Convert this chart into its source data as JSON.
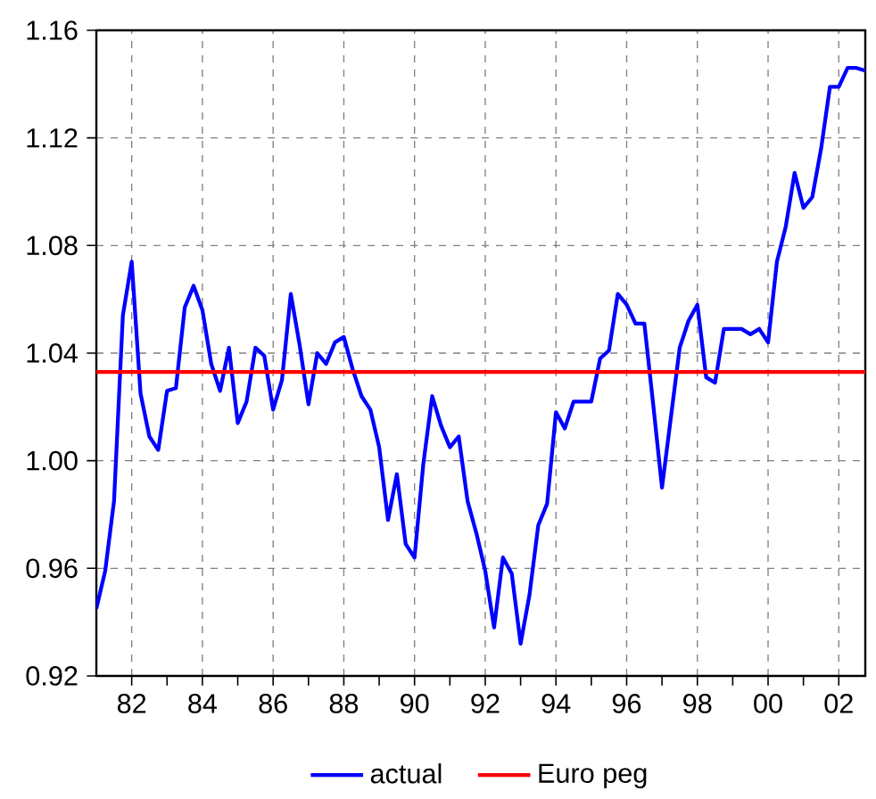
{
  "chart_data": {
    "type": "line",
    "xlim": [
      1981,
      2002.75
    ],
    "ylim": [
      0.92,
      1.16
    ],
    "xticks": [
      {
        "value": 1982,
        "label": "82"
      },
      {
        "value": 1983,
        "label": null
      },
      {
        "value": 1984,
        "label": "84"
      },
      {
        "value": 1985,
        "label": null
      },
      {
        "value": 1986,
        "label": "86"
      },
      {
        "value": 1987,
        "label": null
      },
      {
        "value": 1988,
        "label": "88"
      },
      {
        "value": 1989,
        "label": null
      },
      {
        "value": 1990,
        "label": "90"
      },
      {
        "value": 1991,
        "label": null
      },
      {
        "value": 1992,
        "label": "92"
      },
      {
        "value": 1993,
        "label": null
      },
      {
        "value": 1994,
        "label": "94"
      },
      {
        "value": 1995,
        "label": null
      },
      {
        "value": 1996,
        "label": "96"
      },
      {
        "value": 1997,
        "label": null
      },
      {
        "value": 1998,
        "label": "98"
      },
      {
        "value": 1999,
        "label": null
      },
      {
        "value": 2000,
        "label": "00"
      },
      {
        "value": 2001,
        "label": null
      },
      {
        "value": 2002,
        "label": "02"
      }
    ],
    "yticks": [
      {
        "value": 0.92,
        "label": "0.92"
      },
      {
        "value": 0.96,
        "label": "0.96"
      },
      {
        "value": 1.0,
        "label": "1.00"
      },
      {
        "value": 1.04,
        "label": "1.04"
      },
      {
        "value": 1.08,
        "label": "1.08"
      },
      {
        "value": 1.12,
        "label": "1.12"
      },
      {
        "value": 1.16,
        "label": "1.16"
      }
    ],
    "grid": true,
    "legend": "bottom",
    "marker": "none",
    "line_style": "solid",
    "series": [
      {
        "name": "actual",
        "color": "#0000ff",
        "x": [
          1981.0,
          1981.25,
          1981.5,
          1981.75,
          1982.0,
          1982.25,
          1982.5,
          1982.75,
          1983.0,
          1983.25,
          1983.5,
          1983.75,
          1984.0,
          1984.25,
          1984.5,
          1984.75,
          1985.0,
          1985.25,
          1985.5,
          1985.75,
          1986.0,
          1986.25,
          1986.5,
          1986.75,
          1987.0,
          1987.25,
          1987.5,
          1987.75,
          1988.0,
          1988.25,
          1988.5,
          1988.75,
          1989.0,
          1989.25,
          1989.5,
          1989.75,
          1990.0,
          1990.25,
          1990.5,
          1990.75,
          1991.0,
          1991.25,
          1991.5,
          1991.75,
          1992.0,
          1992.25,
          1992.5,
          1992.75,
          1993.0,
          1993.25,
          1993.5,
          1993.75,
          1994.0,
          1994.25,
          1994.5,
          1994.75,
          1995.0,
          1995.25,
          1995.5,
          1995.75,
          1996.0,
          1996.25,
          1996.5,
          1996.75,
          1997.0,
          1997.25,
          1997.5,
          1997.75,
          1998.0,
          1998.25,
          1998.5,
          1998.75,
          1999.0,
          1999.25,
          1999.5,
          1999.75,
          2000.0,
          2000.25,
          2000.5,
          2000.75,
          2001.0,
          2001.25,
          2001.5,
          2001.75,
          2002.0,
          2002.25,
          2002.5,
          2002.75
        ],
        "values": [
          0.945,
          0.959,
          0.985,
          1.054,
          1.074,
          1.025,
          1.009,
          1.004,
          1.026,
          1.027,
          1.057,
          1.065,
          1.056,
          1.036,
          1.026,
          1.042,
          1.014,
          1.022,
          1.042,
          1.039,
          1.019,
          1.03,
          1.062,
          1.043,
          1.021,
          1.04,
          1.036,
          1.044,
          1.046,
          1.034,
          1.024,
          1.019,
          1.005,
          0.978,
          0.995,
          0.969,
          0.964,
          0.999,
          1.024,
          1.013,
          1.005,
          1.009,
          0.985,
          0.973,
          0.959,
          0.938,
          0.964,
          0.958,
          0.932,
          0.95,
          0.976,
          0.984,
          1.018,
          1.012,
          1.022,
          1.022,
          1.022,
          1.038,
          1.041,
          1.062,
          1.058,
          1.051,
          1.051,
          1.021,
          0.99,
          1.016,
          1.042,
          1.052,
          1.058,
          1.031,
          1.029,
          1.049,
          1.049,
          1.049,
          1.047,
          1.049,
          1.044,
          1.074,
          1.087,
          1.107,
          1.094,
          1.098,
          1.116,
          1.139,
          1.139,
          1.146,
          1.146,
          1.145
        ]
      },
      {
        "name": "Euro peg",
        "color": "#ff0000",
        "x": [
          1981,
          2002.75
        ],
        "values": [
          1.033,
          1.033
        ]
      }
    ]
  }
}
